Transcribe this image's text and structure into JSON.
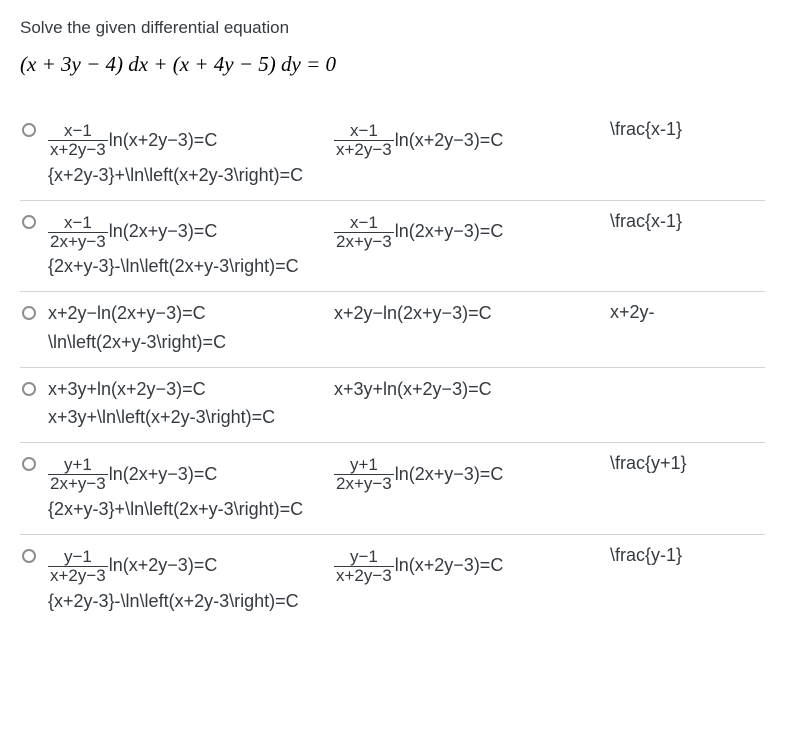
{
  "problem": {
    "text": "Solve the given differential equation",
    "equation_html": "(<span>x</span> + 3<span>y</span> &minus; 4) <span>dx</span> + (<span>x</span> + 4<span>y</span> &minus; 5) <span>dy</span> = 0"
  },
  "styling": {
    "text_color": "#343a40",
    "border_color": "#d0d4d8",
    "radio_border": "#8a8f94",
    "body_font_size": 17,
    "option_font_size": 18
  },
  "options": [
    {
      "has_fraction": true,
      "frac_num": "x−1",
      "frac_den": "x+2y−3",
      "hang3": true,
      "after_frac": "ln(x+2y−3)=C",
      "col3": "\\frac{x-1}",
      "latex": "{x+2y-3}+\\ln\\left(x+2y-3\\right)=C"
    },
    {
      "has_fraction": true,
      "frac_num": "x−1",
      "frac_den": "2x+y−3",
      "hang3": false,
      "after_frac": "ln(2x+y−3)=C",
      "col3": "\\frac{x-1}",
      "latex": "{2x+y-3}-\\ln\\left(2x+y-3\\right)=C"
    },
    {
      "has_fraction": false,
      "plain": "x+2y−ln(2x+y−3)=C",
      "col3": "x+2y-",
      "latex": "\\ln\\left(2x+y-3\\right)=C"
    },
    {
      "has_fraction": false,
      "plain": "x+3y+ln(x+2y−3)=C",
      "col3": "",
      "latex": "x+3y+\\ln\\left(x+2y-3\\right)=C"
    },
    {
      "has_fraction": true,
      "frac_num": "y+1",
      "frac_den": "2x+y−3",
      "hang3": true,
      "after_frac": "ln(2x+y−3)=C",
      "col3": "\\frac{y+1}",
      "latex": "{2x+y-3}+\\ln\\left(2x+y-3\\right)=C"
    },
    {
      "has_fraction": true,
      "frac_num": "y−1",
      "frac_den": "x+2y−3",
      "hang3": false,
      "after_frac": "ln(x+2y−3)=C",
      "col3": "\\frac{y-1}",
      "latex": "{x+2y-3}-\\ln\\left(x+2y-3\\right)=C"
    }
  ]
}
